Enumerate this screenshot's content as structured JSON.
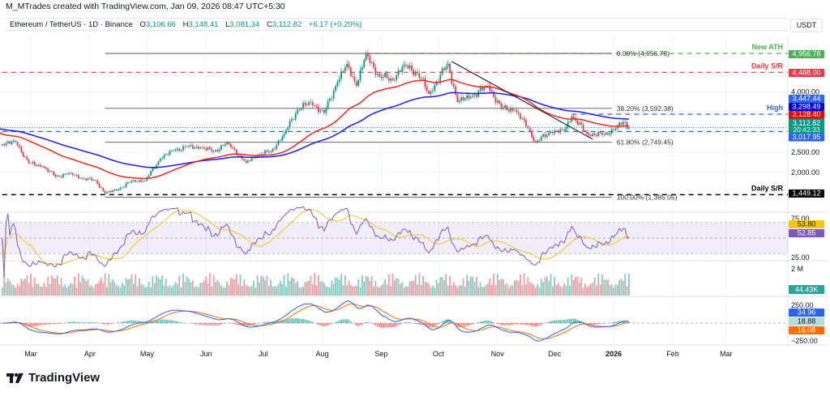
{
  "attribution": "M_MTrades created with TradingView.com, Jan 09, 2026 08:47 UTC+5:30",
  "symbol": {
    "name": "Ethereum / TetherUS · 1D · Binance",
    "open_label": "O",
    "open": "3,106.66",
    "high_label": "H",
    "high": "3,148.41",
    "low_label": "L",
    "low": "3,081.34",
    "close_label": "C",
    "close": "3,112.82",
    "change": "+6.17 (+0.20%)"
  },
  "currency": "USDT",
  "logo": "TradingView",
  "colors": {
    "up": "#089981",
    "down": "#f23645",
    "ma_fast": "#f7261b",
    "ma_slow": "#1a1aff",
    "ath": "#4caf50",
    "sr_red": "#f23645",
    "sr_black": "#000000",
    "high": "#2962ff",
    "rsi": "#7e57c2",
    "rsi_ma": "#f5c518",
    "macd": "#2962ff",
    "signal": "#ff6d00"
  },
  "chart_data": {
    "type": "candlestick",
    "title": "",
    "x_axis": {
      "ticks": [
        {
          "label": "Mar",
          "date": "2025-03-01"
        },
        {
          "label": "Apr",
          "date": "2025-04-01"
        },
        {
          "label": "May",
          "date": "2025-05-01"
        },
        {
          "label": "Jun",
          "date": "2025-06-01"
        },
        {
          "label": "Jul",
          "date": "2025-07-01"
        },
        {
          "label": "Aug",
          "date": "2025-08-01"
        },
        {
          "label": "Sep",
          "date": "2025-09-01"
        },
        {
          "label": "Oct",
          "date": "2025-10-01"
        },
        {
          "label": "Nov",
          "date": "2025-11-01"
        },
        {
          "label": "Dec",
          "date": "2025-12-01"
        },
        {
          "label": "2026",
          "date": "2026-01-01"
        },
        {
          "label": "Feb",
          "date": "2026-02-01"
        },
        {
          "label": "Mar",
          "date": "2026-03-01"
        }
      ]
    },
    "price_axis": {
      "ticks": [
        {
          "label": "4,000.00",
          "value": 4000
        },
        {
          "label": "2,500.00",
          "value": 2500
        },
        {
          "label": "2,000.00",
          "value": 2000
        }
      ]
    },
    "weekly_closes": [
      {
        "date": "2025-02-14",
        "close": 2700
      },
      {
        "date": "2025-02-21",
        "close": 2760
      },
      {
        "date": "2025-02-28",
        "close": 2230
      },
      {
        "date": "2025-03-07",
        "close": 2150
      },
      {
        "date": "2025-03-14",
        "close": 1900
      },
      {
        "date": "2025-03-21",
        "close": 1980
      },
      {
        "date": "2025-03-28",
        "close": 1850
      },
      {
        "date": "2025-04-04",
        "close": 1800
      },
      {
        "date": "2025-04-09",
        "close": 1480
      },
      {
        "date": "2025-04-16",
        "close": 1580
      },
      {
        "date": "2025-04-23",
        "close": 1790
      },
      {
        "date": "2025-04-30",
        "close": 1800
      },
      {
        "date": "2025-05-08",
        "close": 2340
      },
      {
        "date": "2025-05-15",
        "close": 2550
      },
      {
        "date": "2025-05-22",
        "close": 2640
      },
      {
        "date": "2025-05-29",
        "close": 2620
      },
      {
        "date": "2025-06-05",
        "close": 2520
      },
      {
        "date": "2025-06-12",
        "close": 2740
      },
      {
        "date": "2025-06-22",
        "close": 2250
      },
      {
        "date": "2025-06-28",
        "close": 2430
      },
      {
        "date": "2025-07-05",
        "close": 2520
      },
      {
        "date": "2025-07-12",
        "close": 2960
      },
      {
        "date": "2025-07-19",
        "close": 3560
      },
      {
        "date": "2025-07-26",
        "close": 3740
      },
      {
        "date": "2025-08-02",
        "close": 3480
      },
      {
        "date": "2025-08-09",
        "close": 4250
      },
      {
        "date": "2025-08-14",
        "close": 4700
      },
      {
        "date": "2025-08-19",
        "close": 4150
      },
      {
        "date": "2025-08-24",
        "close": 4950
      },
      {
        "date": "2025-08-31",
        "close": 4380
      },
      {
        "date": "2025-09-07",
        "close": 4300
      },
      {
        "date": "2025-09-13",
        "close": 4680
      },
      {
        "date": "2025-09-20",
        "close": 4470
      },
      {
        "date": "2025-09-26",
        "close": 3950
      },
      {
        "date": "2025-10-06",
        "close": 4700
      },
      {
        "date": "2025-10-11",
        "close": 3750
      },
      {
        "date": "2025-10-18",
        "close": 3880
      },
      {
        "date": "2025-10-27",
        "close": 4150
      },
      {
        "date": "2025-11-03",
        "close": 3600
      },
      {
        "date": "2025-11-10",
        "close": 3550
      },
      {
        "date": "2025-11-17",
        "close": 3100
      },
      {
        "date": "2025-11-21",
        "close": 2750
      },
      {
        "date": "2025-11-29",
        "close": 3000
      },
      {
        "date": "2025-12-06",
        "close": 3040
      },
      {
        "date": "2025-12-10",
        "close": 3400
      },
      {
        "date": "2025-12-18",
        "close": 2950
      },
      {
        "date": "2025-12-27",
        "close": 2940
      },
      {
        "date": "2026-01-03",
        "close": 3140
      },
      {
        "date": "2026-01-06",
        "close": 3250
      },
      {
        "date": "2026-01-09",
        "close": 3112.82
      }
    ],
    "last_price": {
      "value": "3,112.82",
      "countdown": "20:42:33"
    },
    "moving_averages": [
      {
        "value": "3,128.40",
        "color": "#f7261b"
      },
      {
        "value": "3,298.49",
        "color": "#1a1aff"
      }
    ],
    "levels": [
      {
        "label": "New ATH",
        "value": "4,956.78",
        "price": 4956.78,
        "color": "#4caf50",
        "from_date": "2025-08-24"
      },
      {
        "label": "Daily S/R",
        "value": "4,488.00",
        "price": 4488.0,
        "color": "#f23645",
        "from_date": "2025-02-14"
      },
      {
        "label": "High",
        "value": "3,447.44",
        "price": 3447.44,
        "color": "#2962ff",
        "from_date": "2025-12-10"
      },
      {
        "label": "",
        "value": "3,017.95",
        "price": 3017.95,
        "color": "#2962ff",
        "from_date": "2025-02-14"
      },
      {
        "label": "Daily S/R",
        "value": "1,449.12",
        "price": 1449.12,
        "color": "#000000",
        "from_date": "2025-02-14"
      }
    ],
    "fibonacci": {
      "from_date": "2025-04-09",
      "to_date": "2025-12-31",
      "levels": [
        {
          "label": "0.00% (4,956.78)",
          "price": 4956.78
        },
        {
          "label": "38.20% (3,592.38)",
          "price": 3592.38
        },
        {
          "label": "61.80% (2,749.45)",
          "price": 2749.45
        },
        {
          "label": "100.00% (1,385.05)",
          "price": 1385.05
        }
      ]
    },
    "trendline": {
      "from": {
        "date": "2025-10-08",
        "price": 4755
      },
      "to": {
        "date": "2025-12-21",
        "price": 2825
      }
    },
    "rsi": {
      "ticks": [
        "75.00",
        "25.00"
      ],
      "band": [
        70,
        30
      ],
      "rsi_value": "52.85",
      "rsi_ma_value": "53.80"
    },
    "volume": {
      "tick": "2 M",
      "last_value": "44.43K"
    },
    "macd": {
      "ticks": [
        "250.00",
        "−250.00"
      ],
      "macd_value": "34.96",
      "histogram_value": "18.88",
      "signal_value": "16.08"
    }
  }
}
